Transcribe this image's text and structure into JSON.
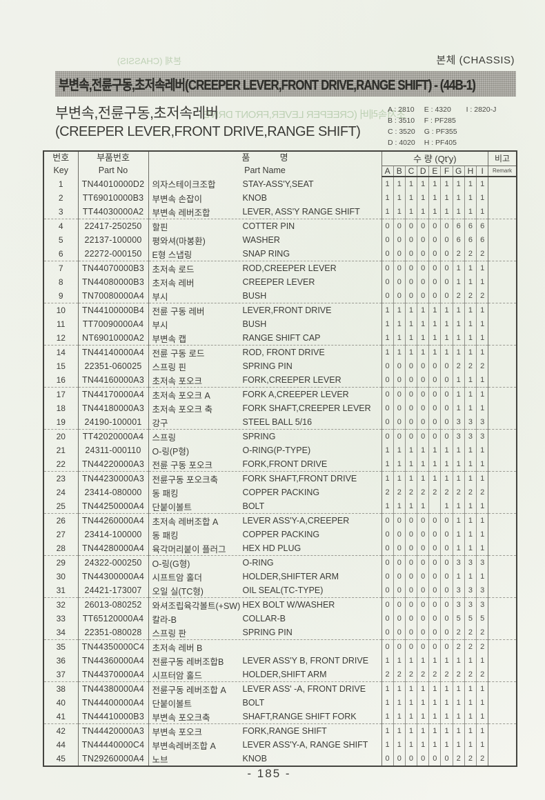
{
  "page": {
    "header_right": "본체 (CHASSIS)",
    "title_bar": "부변속,전륜구동,초저속레버(CREEPER LEVER,FRONT DRIVE,RANGE SHIFT) - (44B-1)",
    "subtitle_kr": "부변속,전륜구동,초저속레버",
    "subtitle_en": "(CREEPER LEVER,FRONT DRIVE,RANGE SHIFT)",
    "page_number": "- 185 -",
    "ghost_top_left": "본체 (CHASSIS)",
    "ghost_subtitle": "초저속레버 (CREEPER LEVER,FRONT DRIVE"
  },
  "legend": {
    "columns": [
      [
        "A : 2810",
        "B : 3510",
        "C : 3520",
        "D : 4020"
      ],
      [
        "E : 4320",
        "F : PF285",
        "G : PF355",
        "H : PF405"
      ],
      [
        "I : 2820-J"
      ]
    ]
  },
  "colors": {
    "title_bar_bg": "#a5a49c",
    "paper": "#f4f5ef",
    "table_line": "#44443f",
    "text": "#3b3b37",
    "ghost_green": "#7da56e"
  },
  "table": {
    "headers": {
      "key_kr": "번호",
      "key_en": "Key",
      "part_no_kr": "부품번호",
      "part_no_en": "Part No",
      "name_kr": "품            명",
      "name_en": "Part Name",
      "qty_label": "수 량 (Qt'y)",
      "qty_cols": [
        "A",
        "B",
        "C",
        "D",
        "E",
        "F",
        "G",
        "H",
        "I"
      ],
      "remark_kr": "비고",
      "remark_en": "Remark"
    },
    "rows": [
      {
        "key": "1",
        "part_no": "TN44010000D2",
        "name_kr": "의자스테이크조합",
        "name_en": "STAY-ASS'Y,SEAT",
        "qty": [
          "1",
          "1",
          "1",
          "1",
          "1",
          "1",
          "1",
          "1",
          "1"
        ],
        "remark": ""
      },
      {
        "key": "2",
        "part_no": "TT69010000B3",
        "name_kr": "부변속 손잡이",
        "name_en": "KNOB",
        "qty": [
          "1",
          "1",
          "1",
          "1",
          "1",
          "1",
          "1",
          "1",
          "1"
        ],
        "remark": ""
      },
      {
        "key": "3",
        "part_no": "TT44030000A2",
        "name_kr": "부변속 레버조합",
        "name_en": "LEVER, ASS'Y RANGE SHIFT",
        "qty": [
          "1",
          "1",
          "1",
          "1",
          "1",
          "1",
          "1",
          "1",
          "1"
        ],
        "remark": ""
      },
      {
        "key": "4",
        "part_no": "22417-250250",
        "name_kr": "할핀",
        "name_en": "COTTER PIN",
        "qty": [
          "0",
          "0",
          "0",
          "0",
          "0",
          "0",
          "6",
          "6",
          "6"
        ],
        "remark": ""
      },
      {
        "key": "5",
        "part_no": "22137-100000",
        "name_kr": "평와셔(마봉환)",
        "name_en": "WASHER",
        "qty": [
          "0",
          "0",
          "0",
          "0",
          "0",
          "0",
          "6",
          "6",
          "6"
        ],
        "remark": ""
      },
      {
        "key": "6",
        "part_no": "22272-000150",
        "name_kr": "E형 스냅링",
        "name_en": "SNAP RING",
        "qty": [
          "0",
          "0",
          "0",
          "0",
          "0",
          "0",
          "2",
          "2",
          "2"
        ],
        "remark": ""
      },
      {
        "key": "7",
        "part_no": "TN44070000B3",
        "name_kr": "초저속 로드",
        "name_en": "ROD,CREEPER LEVER",
        "qty": [
          "0",
          "0",
          "0",
          "0",
          "0",
          "0",
          "1",
          "1",
          "1"
        ],
        "remark": ""
      },
      {
        "key": "8",
        "part_no": "TN44080000B3",
        "name_kr": "초저속 레버",
        "name_en": "CREEPER LEVER",
        "qty": [
          "0",
          "0",
          "0",
          "0",
          "0",
          "0",
          "1",
          "1",
          "1"
        ],
        "remark": ""
      },
      {
        "key": "9",
        "part_no": "TN70080000A4",
        "name_kr": "부시",
        "name_en": "BUSH",
        "qty": [
          "0",
          "0",
          "0",
          "0",
          "0",
          "0",
          "2",
          "2",
          "2"
        ],
        "remark": ""
      },
      {
        "key": "10",
        "part_no": "TN44100000B4",
        "name_kr": "전륜 구동 레버",
        "name_en": "LEVER,FRONT DRIVE",
        "qty": [
          "1",
          "1",
          "1",
          "1",
          "1",
          "1",
          "1",
          "1",
          "1"
        ],
        "remark": ""
      },
      {
        "key": "11",
        "part_no": "TT70090000A4",
        "name_kr": "부시",
        "name_en": "BUSH",
        "qty": [
          "1",
          "1",
          "1",
          "1",
          "1",
          "1",
          "1",
          "1",
          "1"
        ],
        "remark": ""
      },
      {
        "key": "12",
        "part_no": "NT69010000A2",
        "name_kr": "부변속 캡",
        "name_en": "RANGE SHIFT CAP",
        "qty": [
          "1",
          "1",
          "1",
          "1",
          "1",
          "1",
          "1",
          "1",
          "1"
        ],
        "remark": ""
      },
      {
        "key": "14",
        "part_no": "TN44140000A4",
        "name_kr": "전륜 구동 로드",
        "name_en": "ROD, FRONT DRIVE",
        "qty": [
          "1",
          "1",
          "1",
          "1",
          "1",
          "1",
          "1",
          "1",
          "1"
        ],
        "remark": ""
      },
      {
        "key": "15",
        "part_no": "22351-060025",
        "name_kr": "스프링 핀",
        "name_en": "SPRING PIN",
        "qty": [
          "0",
          "0",
          "0",
          "0",
          "0",
          "0",
          "2",
          "2",
          "2"
        ],
        "remark": ""
      },
      {
        "key": "16",
        "part_no": "TN44160000A3",
        "name_kr": "초저속 포오크",
        "name_en": "FORK,CREEPER LEVER",
        "qty": [
          "0",
          "0",
          "0",
          "0",
          "0",
          "0",
          "1",
          "1",
          "1"
        ],
        "remark": ""
      },
      {
        "key": "17",
        "part_no": "TN44170000A4",
        "name_kr": "초저속 포오크 A",
        "name_en": "FORK A,CREEPER LEVER",
        "qty": [
          "0",
          "0",
          "0",
          "0",
          "0",
          "0",
          "1",
          "1",
          "1"
        ],
        "remark": ""
      },
      {
        "key": "18",
        "part_no": "TN44180000A3",
        "name_kr": "초저속 포오크 축",
        "name_en": "FORK SHAFT,CREEPER LEVER",
        "qty": [
          "0",
          "0",
          "0",
          "0",
          "0",
          "0",
          "1",
          "1",
          "1"
        ],
        "remark": ""
      },
      {
        "key": "19",
        "part_no": "24190-100001",
        "name_kr": "강구",
        "name_en": "STEEL BALL 5/16",
        "qty": [
          "0",
          "0",
          "0",
          "0",
          "0",
          "0",
          "3",
          "3",
          "3"
        ],
        "remark": ""
      },
      {
        "key": "20",
        "part_no": "TT42020000A4",
        "name_kr": "스프링",
        "name_en": "SPRING",
        "qty": [
          "0",
          "0",
          "0",
          "0",
          "0",
          "0",
          "3",
          "3",
          "3"
        ],
        "remark": ""
      },
      {
        "key": "21",
        "part_no": "24311-000110",
        "name_kr": "O-링(P형)",
        "name_en": "O-RING(P-TYPE)",
        "qty": [
          "1",
          "1",
          "1",
          "1",
          "1",
          "1",
          "1",
          "1",
          "1"
        ],
        "remark": ""
      },
      {
        "key": "22",
        "part_no": "TN44220000A3",
        "name_kr": "전륜 구동 포오크",
        "name_en": "FORK,FRONT DRIVE",
        "qty": [
          "1",
          "1",
          "1",
          "1",
          "1",
          "1",
          "1",
          "1",
          "1"
        ],
        "remark": ""
      },
      {
        "key": "23",
        "part_no": "TN44230000A3",
        "name_kr": "전륜구동 포오크축",
        "name_en": "FORK SHAFT,FRONT DRIVE",
        "qty": [
          "1",
          "1",
          "1",
          "1",
          "1",
          "1",
          "1",
          "1",
          "1"
        ],
        "remark": ""
      },
      {
        "key": "24",
        "part_no": "23414-080000",
        "name_kr": "동 패킹",
        "name_en": "COPPER PACKING",
        "qty": [
          "2",
          "2",
          "2",
          "2",
          "2",
          "2",
          "2",
          "2",
          "2"
        ],
        "remark": ""
      },
      {
        "key": "25",
        "part_no": "TN44250000A4",
        "name_kr": "단붙이볼트",
        "name_en": "BOLT",
        "qty": [
          "1",
          "1",
          "1",
          "1",
          "",
          "1",
          "1",
          "1",
          "1"
        ],
        "remark": ""
      },
      {
        "key": "26",
        "part_no": "TN44260000A4",
        "name_kr": "초저속 레버조합 A",
        "name_en": "LEVER ASS'Y-A,CREEPER",
        "qty": [
          "0",
          "0",
          "0",
          "0",
          "0",
          "0",
          "1",
          "1",
          "1"
        ],
        "remark": ""
      },
      {
        "key": "27",
        "part_no": "23414-100000",
        "name_kr": "동 패킹",
        "name_en": "COPPER PACKING",
        "qty": [
          "0",
          "0",
          "0",
          "0",
          "0",
          "0",
          "1",
          "1",
          "1"
        ],
        "remark": ""
      },
      {
        "key": "28",
        "part_no": "TN44280000A4",
        "name_kr": "육각머리붙이 플러그",
        "name_en": "HEX HD PLUG",
        "qty": [
          "0",
          "0",
          "0",
          "0",
          "0",
          "0",
          "1",
          "1",
          "1"
        ],
        "remark": ""
      },
      {
        "key": "29",
        "part_no": "24322-000250",
        "name_kr": "O-링(G형)",
        "name_en": "O-RING",
        "qty": [
          "0",
          "0",
          "0",
          "0",
          "0",
          "0",
          "3",
          "3",
          "3"
        ],
        "remark": ""
      },
      {
        "key": "30",
        "part_no": "TN44300000A4",
        "name_kr": "시프트암 홀더",
        "name_en": "HOLDER,SHIFTER ARM",
        "qty": [
          "0",
          "0",
          "0",
          "0",
          "0",
          "0",
          "1",
          "1",
          "1"
        ],
        "remark": ""
      },
      {
        "key": "31",
        "part_no": "24421-173007",
        "name_kr": "오일 실(TC형)",
        "name_en": "OIL SEAL(TC-TYPE)",
        "qty": [
          "0",
          "0",
          "0",
          "0",
          "0",
          "0",
          "3",
          "3",
          "3"
        ],
        "remark": ""
      },
      {
        "key": "32",
        "part_no": "26013-080252",
        "name_kr": "와셔조립육각볼트(+SW)",
        "name_en": "HEX BOLT W/WASHER",
        "qty": [
          "0",
          "0",
          "0",
          "0",
          "0",
          "0",
          "3",
          "3",
          "3"
        ],
        "remark": ""
      },
      {
        "key": "33",
        "part_no": "TT65120000A4",
        "name_kr": "칼라-B",
        "name_en": "COLLAR-B",
        "qty": [
          "0",
          "0",
          "0",
          "0",
          "0",
          "0",
          "5",
          "5",
          "5"
        ],
        "remark": ""
      },
      {
        "key": "34",
        "part_no": "22351-080028",
        "name_kr": "스프링 판",
        "name_en": "SPRING PIN",
        "qty": [
          "0",
          "0",
          "0",
          "0",
          "0",
          "0",
          "2",
          "2",
          "2"
        ],
        "remark": ""
      },
      {
        "key": "35",
        "part_no": "TN44350000C4",
        "name_kr": "초저속 레버 B",
        "name_en": "",
        "qty": [
          "0",
          "0",
          "0",
          "0",
          "0",
          "0",
          "2",
          "2",
          "2"
        ],
        "remark": ""
      },
      {
        "key": "36",
        "part_no": "TN44360000A4",
        "name_kr": "전륜구동 레버조합B",
        "name_en": "LEVER ASS'Y B, FRONT DRIVE",
        "qty": [
          "1",
          "1",
          "1",
          "1",
          "1",
          "1",
          "1",
          "1",
          "1"
        ],
        "remark": ""
      },
      {
        "key": "37",
        "part_no": "TN44370000A4",
        "name_kr": "시프터암 홀드",
        "name_en": "HOLDER,SHIFT ARM",
        "qty": [
          "2",
          "2",
          "2",
          "2",
          "2",
          "2",
          "2",
          "2",
          "2"
        ],
        "remark": ""
      },
      {
        "key": "38",
        "part_no": "TN44380000A4",
        "name_kr": "전륜구동 레버조합 A",
        "name_en": "LEVER ASS' -A, FRONT DRIVE",
        "qty": [
          "1",
          "1",
          "1",
          "1",
          "1",
          "1",
          "1",
          "1",
          "1"
        ],
        "remark": ""
      },
      {
        "key": "40",
        "part_no": "TN44400000A4",
        "name_kr": "단붙이볼트",
        "name_en": "BOLT",
        "qty": [
          "1",
          "1",
          "1",
          "1",
          "1",
          "1",
          "1",
          "1",
          "1"
        ],
        "remark": ""
      },
      {
        "key": "41",
        "part_no": "TN44410000B3",
        "name_kr": "부변속 포오크축",
        "name_en": "SHAFT,RANGE SHIFT FORK",
        "qty": [
          "1",
          "1",
          "1",
          "1",
          "1",
          "1",
          "1",
          "1",
          "1"
        ],
        "remark": ""
      },
      {
        "key": "42",
        "part_no": "TN44420000A3",
        "name_kr": "부변속 포오크",
        "name_en": "FORK,RANGE SHIFT",
        "qty": [
          "1",
          "1",
          "1",
          "1",
          "1",
          "1",
          "1",
          "1",
          "1"
        ],
        "remark": ""
      },
      {
        "key": "44",
        "part_no": "TN44440000C4",
        "name_kr": "부변속레버조합 A",
        "name_en": "LEVER ASS'Y-A, RANGE SHIFT",
        "qty": [
          "1",
          "1",
          "1",
          "1",
          "1",
          "1",
          "1",
          "1",
          "1"
        ],
        "remark": ""
      },
      {
        "key": "45",
        "part_no": "TN29260000A4",
        "name_kr": "노브",
        "name_en": "KNOB",
        "qty": [
          "0",
          "0",
          "0",
          "0",
          "0",
          "0",
          "2",
          "2",
          "2"
        ],
        "remark": ""
      }
    ]
  }
}
